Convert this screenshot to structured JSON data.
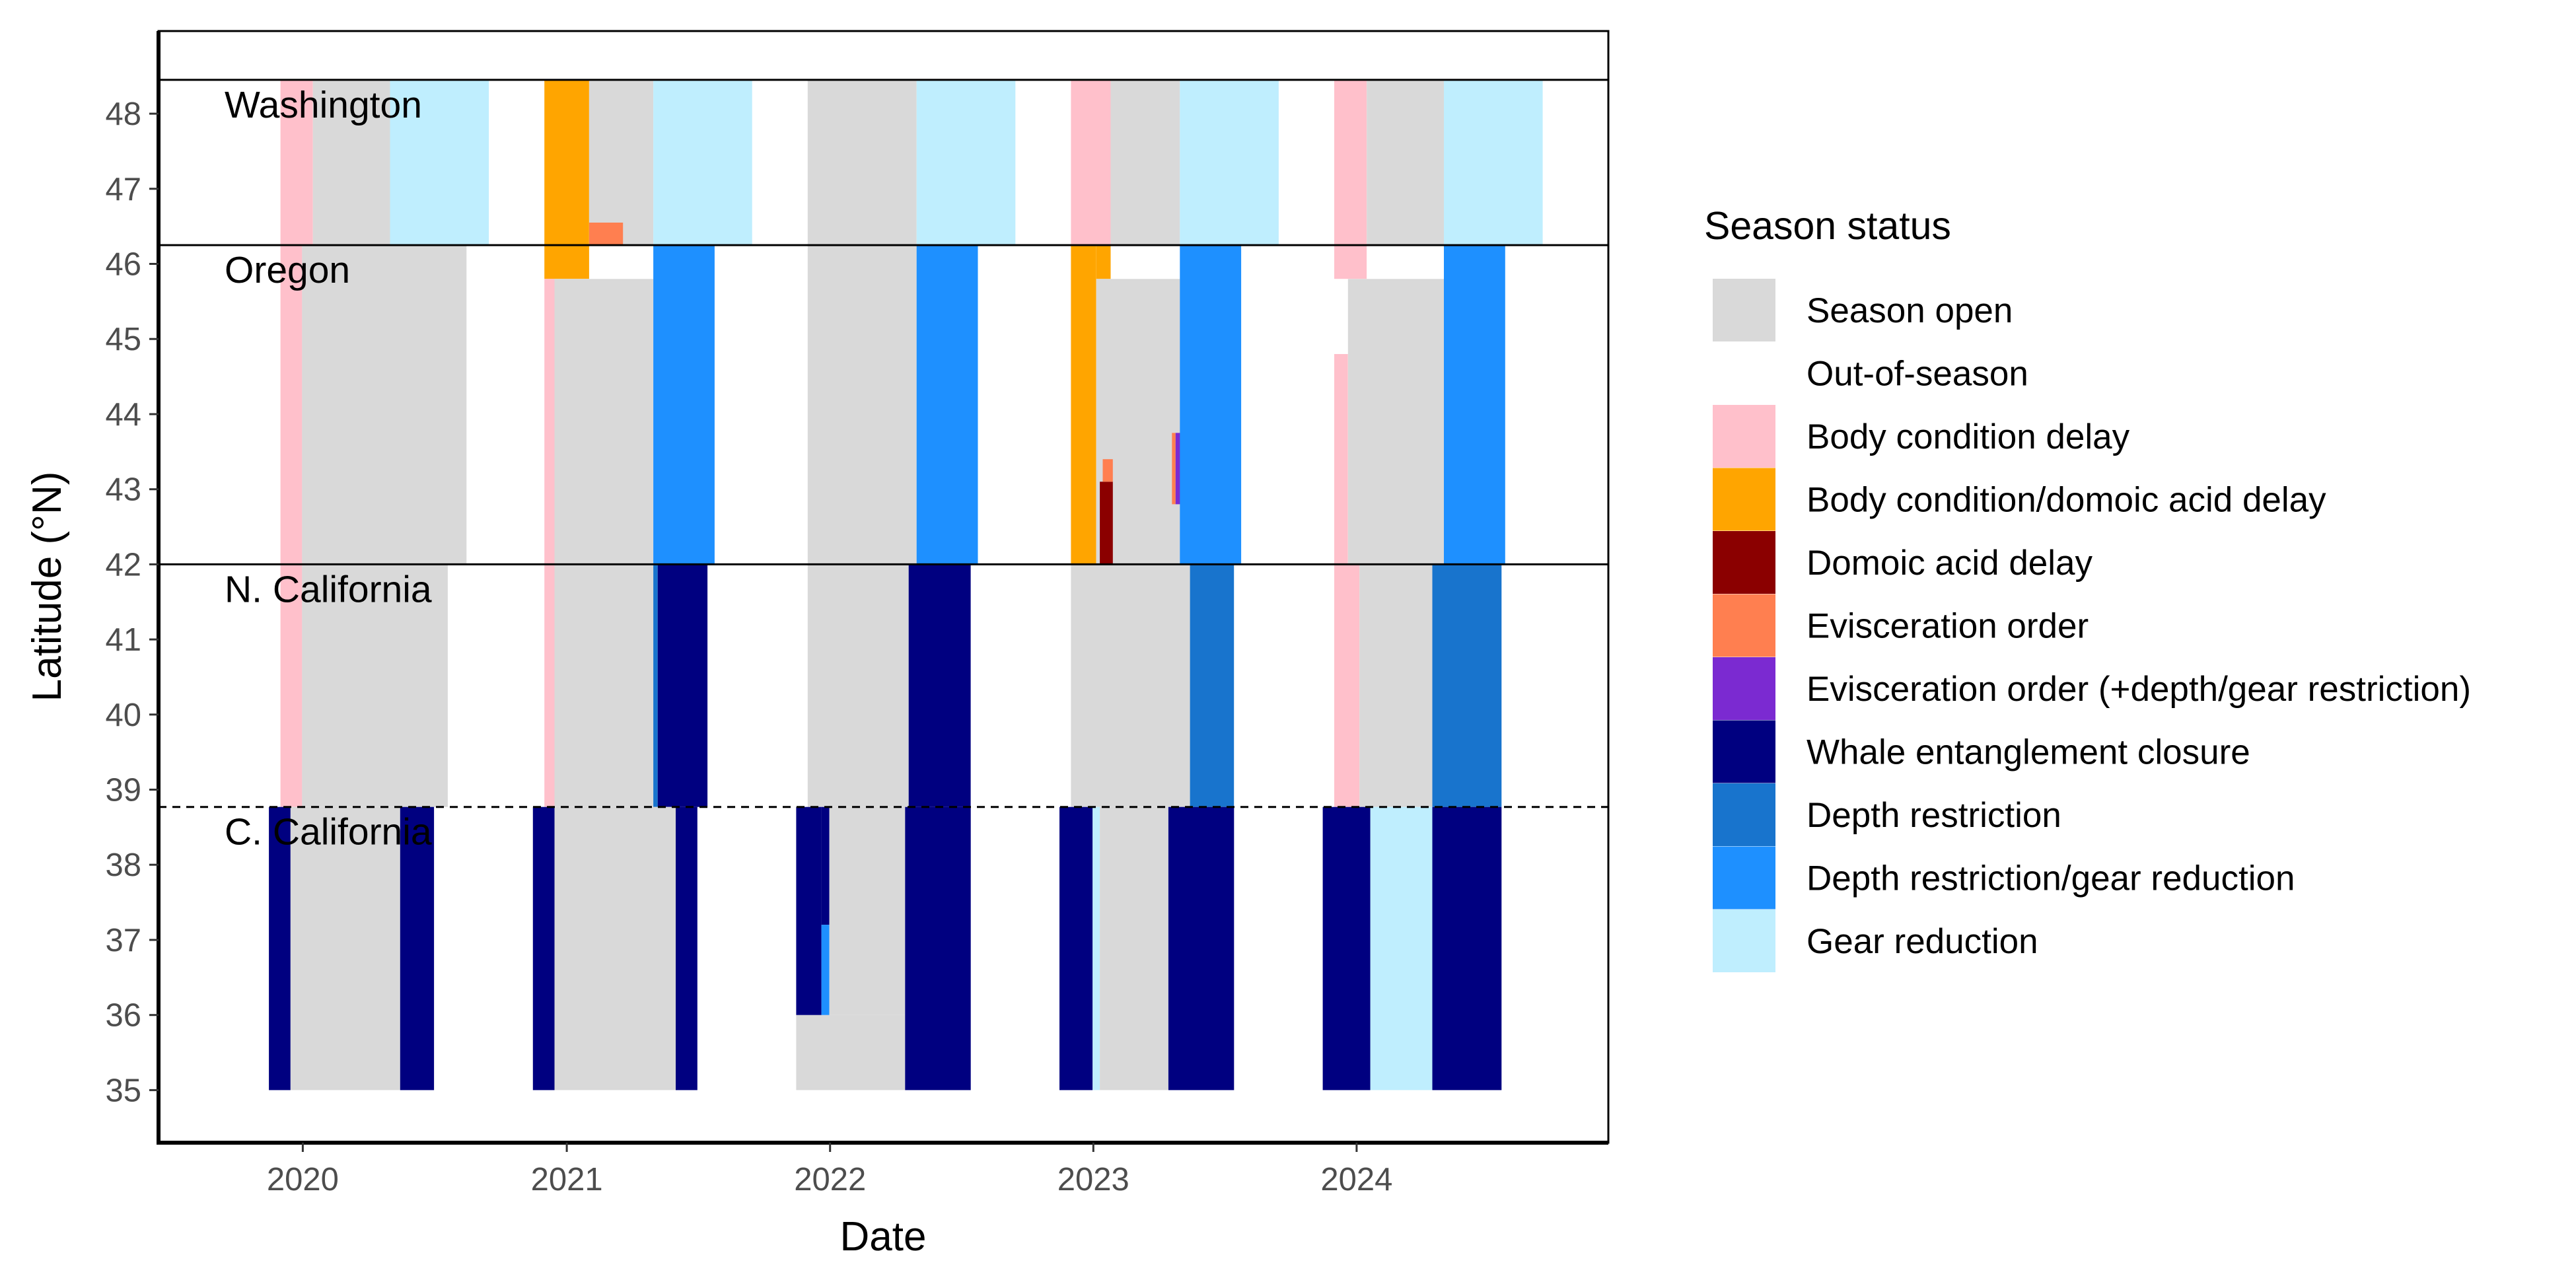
{
  "chart_data": {
    "type": "heatmap",
    "title": "",
    "xlabel": "Date",
    "ylabel": "Latitude (°N)",
    "xlim": [
      "2019-06-15",
      "2024-12-15"
    ],
    "ylim": [
      34.3,
      49.1
    ],
    "x_ticks": [
      {
        "date": "2020-01-01",
        "label": "2020"
      },
      {
        "date": "2021-01-01",
        "label": "2021"
      },
      {
        "date": "2022-01-01",
        "label": "2022"
      },
      {
        "date": "2023-01-01",
        "label": "2023"
      },
      {
        "date": "2024-01-01",
        "label": "2024"
      }
    ],
    "y_ticks": [
      35,
      36,
      37,
      38,
      39,
      40,
      41,
      42,
      43,
      44,
      45,
      46,
      47,
      48
    ],
    "grid": false,
    "legend_position": "right",
    "legend": {
      "title": "Season status",
      "items": [
        {
          "label": "Season open",
          "color": "#d9d9d9"
        },
        {
          "label": "Out-of-season",
          "color": "#ffffff"
        },
        {
          "label": "Body condition delay",
          "color": "#ffc0cb"
        },
        {
          "label": "Body condition/domoic acid delay",
          "color": "#ffa500"
        },
        {
          "label": "Domoic acid delay",
          "color": "#8b0000"
        },
        {
          "label": "Evisceration order",
          "color": "#ff7f50"
        },
        {
          "label": "Evisceration order (+depth/gear restriction)",
          "color": "#7b2ad1"
        },
        {
          "label": "Whale entanglement closure",
          "color": "#000080"
        },
        {
          "label": "Depth restriction",
          "color": "#1874cd"
        },
        {
          "label": "Depth restriction/gear reduction",
          "color": "#1e90ff"
        },
        {
          "label": "Gear reduction",
          "color": "#bfeefe"
        }
      ]
    },
    "regions": [
      {
        "name": "Washington",
        "lat_min": 46.25,
        "lat_max": 48.45
      },
      {
        "name": "Oregon",
        "lat_min": 42.0,
        "lat_max": 46.25
      },
      {
        "name": "N. California",
        "lat_min": 38.77,
        "lat_max": 42.0
      },
      {
        "name": "C. California",
        "lat_min": 35.0,
        "lat_max": 38.77
      }
    ],
    "region_boundaries": [
      {
        "lat": 48.45,
        "style": "solid"
      },
      {
        "lat": 46.25,
        "style": "solid"
      },
      {
        "lat": 42.0,
        "style": "solid"
      },
      {
        "lat": 38.77,
        "style": "dashed"
      }
    ],
    "segments": [
      {
        "status": "Body condition delay",
        "start": "2019-12-01",
        "end": "2020-01-15",
        "lat_min": 46.25,
        "lat_max": 48.45
      },
      {
        "status": "Season open",
        "start": "2020-01-15",
        "end": "2020-05-01",
        "lat_min": 46.25,
        "lat_max": 48.45
      },
      {
        "status": "Gear reduction",
        "start": "2020-05-01",
        "end": "2020-09-15",
        "lat_min": 46.25,
        "lat_max": 48.45
      },
      {
        "status": "Body condition/domoic acid delay",
        "start": "2020-12-01",
        "end": "2021-02-01",
        "lat_min": 45.8,
        "lat_max": 48.45
      },
      {
        "status": "Season open",
        "start": "2021-02-01",
        "end": "2021-05-01",
        "lat_min": 46.25,
        "lat_max": 48.45
      },
      {
        "status": "Evisceration order",
        "start": "2021-02-01",
        "end": "2021-03-20",
        "lat_min": 46.25,
        "lat_max": 46.55
      },
      {
        "status": "Gear reduction",
        "start": "2021-05-01",
        "end": "2021-09-15",
        "lat_min": 46.25,
        "lat_max": 48.45
      },
      {
        "status": "Season open",
        "start": "2021-12-01",
        "end": "2022-05-01",
        "lat_min": 46.25,
        "lat_max": 48.45
      },
      {
        "status": "Gear reduction",
        "start": "2022-05-01",
        "end": "2022-09-15",
        "lat_min": 46.25,
        "lat_max": 48.45
      },
      {
        "status": "Body condition delay",
        "start": "2022-12-01",
        "end": "2023-01-25",
        "lat_min": 46.25,
        "lat_max": 48.45
      },
      {
        "status": "Season open",
        "start": "2023-01-25",
        "end": "2023-05-01",
        "lat_min": 46.25,
        "lat_max": 48.45
      },
      {
        "status": "Gear reduction",
        "start": "2023-05-01",
        "end": "2023-09-15",
        "lat_min": 46.25,
        "lat_max": 48.45
      },
      {
        "status": "Body condition delay",
        "start": "2023-12-01",
        "end": "2024-01-15",
        "lat_min": 45.8,
        "lat_max": 48.45
      },
      {
        "status": "Season open",
        "start": "2024-01-15",
        "end": "2024-05-01",
        "lat_min": 46.25,
        "lat_max": 48.45
      },
      {
        "status": "Gear reduction",
        "start": "2024-05-01",
        "end": "2024-09-15",
        "lat_min": 46.25,
        "lat_max": 48.45
      },
      {
        "status": "Body condition delay",
        "start": "2019-12-01",
        "end": "2019-12-31",
        "lat_min": 42.0,
        "lat_max": 46.25
      },
      {
        "status": "Season open",
        "start": "2019-12-31",
        "end": "2020-08-15",
        "lat_min": 42.0,
        "lat_max": 46.25
      },
      {
        "status": "Body condition delay",
        "start": "2020-12-01",
        "end": "2020-12-15",
        "lat_min": 42.0,
        "lat_max": 45.8
      },
      {
        "status": "Season open",
        "start": "2020-12-15",
        "end": "2021-05-01",
        "lat_min": 42.0,
        "lat_max": 45.8
      },
      {
        "status": "Depth restriction/gear reduction",
        "start": "2021-05-01",
        "end": "2021-07-25",
        "lat_min": 42.0,
        "lat_max": 46.25
      },
      {
        "status": "Season open",
        "start": "2021-12-01",
        "end": "2022-05-01",
        "lat_min": 42.0,
        "lat_max": 46.25
      },
      {
        "status": "Depth restriction/gear reduction",
        "start": "2022-05-01",
        "end": "2022-07-25",
        "lat_min": 42.0,
        "lat_max": 46.25
      },
      {
        "status": "Body condition/domoic acid delay",
        "start": "2022-12-01",
        "end": "2023-01-05",
        "lat_min": 42.0,
        "lat_max": 46.25
      },
      {
        "status": "Body condition/domoic acid delay",
        "start": "2023-01-05",
        "end": "2023-01-25",
        "lat_min": 45.8,
        "lat_max": 46.25
      },
      {
        "status": "Season open",
        "start": "2023-01-05",
        "end": "2023-05-01",
        "lat_min": 42.0,
        "lat_max": 45.8
      },
      {
        "status": "Domoic acid delay",
        "start": "2023-01-10",
        "end": "2023-01-28",
        "lat_min": 42.0,
        "lat_max": 43.1
      },
      {
        "status": "Evisceration order",
        "start": "2023-01-14",
        "end": "2023-01-28",
        "lat_min": 43.1,
        "lat_max": 43.4
      },
      {
        "status": "Evisceration order",
        "start": "2023-04-20",
        "end": "2023-04-25",
        "lat_min": 42.8,
        "lat_max": 43.75
      },
      {
        "status": "Evisceration order (+depth/gear restriction)",
        "start": "2023-04-25",
        "end": "2023-05-05",
        "lat_min": 42.8,
        "lat_max": 43.75
      },
      {
        "status": "Depth restriction/gear reduction",
        "start": "2023-05-01",
        "end": "2023-07-25",
        "lat_min": 42.0,
        "lat_max": 46.25
      },
      {
        "status": "Body condition delay",
        "start": "2023-12-01",
        "end": "2023-12-20",
        "lat_min": 42.0,
        "lat_max": 44.8
      },
      {
        "status": "Season open",
        "start": "2023-12-20",
        "end": "2024-05-01",
        "lat_min": 42.0,
        "lat_max": 45.8
      },
      {
        "status": "Depth restriction/gear reduction",
        "start": "2024-05-01",
        "end": "2024-07-25",
        "lat_min": 42.0,
        "lat_max": 46.25
      },
      {
        "status": "Body condition delay",
        "start": "2019-12-01",
        "end": "2019-12-31",
        "lat_min": 38.77,
        "lat_max": 42.0
      },
      {
        "status": "Season open",
        "start": "2019-12-31",
        "end": "2020-07-20",
        "lat_min": 38.77,
        "lat_max": 42.0
      },
      {
        "status": "Body condition delay",
        "start": "2020-12-01",
        "end": "2020-12-15",
        "lat_min": 38.77,
        "lat_max": 42.0
      },
      {
        "status": "Season open",
        "start": "2020-12-15",
        "end": "2021-05-01",
        "lat_min": 38.77,
        "lat_max": 42.0
      },
      {
        "status": "Depth restriction",
        "start": "2021-05-01",
        "end": "2021-05-07",
        "lat_min": 38.77,
        "lat_max": 42.0
      },
      {
        "status": "Whale entanglement closure",
        "start": "2021-05-07",
        "end": "2021-07-15",
        "lat_min": 38.77,
        "lat_max": 42.0
      },
      {
        "status": "Season open",
        "start": "2021-12-01",
        "end": "2022-04-20",
        "lat_min": 38.77,
        "lat_max": 42.0
      },
      {
        "status": "Whale entanglement closure",
        "start": "2022-04-20",
        "end": "2022-07-15",
        "lat_min": 38.77,
        "lat_max": 42.0
      },
      {
        "status": "Season open",
        "start": "2022-12-01",
        "end": "2023-05-15",
        "lat_min": 38.77,
        "lat_max": 42.0
      },
      {
        "status": "Depth restriction",
        "start": "2023-05-15",
        "end": "2023-07-15",
        "lat_min": 38.77,
        "lat_max": 42.0
      },
      {
        "status": "Body condition delay",
        "start": "2023-12-01",
        "end": "2024-01-05",
        "lat_min": 38.77,
        "lat_max": 42.0
      },
      {
        "status": "Season open",
        "start": "2024-01-05",
        "end": "2024-04-15",
        "lat_min": 38.77,
        "lat_max": 42.0
      },
      {
        "status": "Depth restriction",
        "start": "2024-04-15",
        "end": "2024-07-20",
        "lat_min": 38.77,
        "lat_max": 42.0
      },
      {
        "status": "Whale entanglement closure",
        "start": "2019-11-15",
        "end": "2019-12-15",
        "lat_min": 35.0,
        "lat_max": 38.77
      },
      {
        "status": "Season open",
        "start": "2019-12-15",
        "end": "2020-05-15",
        "lat_min": 35.0,
        "lat_max": 38.77
      },
      {
        "status": "Whale entanglement closure",
        "start": "2020-05-15",
        "end": "2020-07-01",
        "lat_min": 35.0,
        "lat_max": 38.77
      },
      {
        "status": "Whale entanglement closure",
        "start": "2020-11-15",
        "end": "2020-12-15",
        "lat_min": 35.0,
        "lat_max": 38.77
      },
      {
        "status": "Season open",
        "start": "2020-12-15",
        "end": "2021-06-01",
        "lat_min": 35.0,
        "lat_max": 38.77
      },
      {
        "status": "Whale entanglement closure",
        "start": "2021-06-01",
        "end": "2021-07-01",
        "lat_min": 35.0,
        "lat_max": 38.77
      },
      {
        "status": "Season open",
        "start": "2021-11-15",
        "end": "2022-04-15",
        "lat_min": 35.0,
        "lat_max": 36.0
      },
      {
        "status": "Whale entanglement closure",
        "start": "2021-11-15",
        "end": "2021-12-20",
        "lat_min": 36.0,
        "lat_max": 38.77
      },
      {
        "status": "Whale entanglement closure",
        "start": "2021-12-20",
        "end": "2021-12-31",
        "lat_min": 37.2,
        "lat_max": 38.77
      },
      {
        "status": "Depth restriction/gear reduction",
        "start": "2021-12-20",
        "end": "2021-12-31",
        "lat_min": 36.0,
        "lat_max": 37.2
      },
      {
        "status": "Season open",
        "start": "2021-12-31",
        "end": "2022-04-15",
        "lat_min": 36.0,
        "lat_max": 38.77
      },
      {
        "status": "Whale entanglement closure",
        "start": "2022-04-15",
        "end": "2022-07-15",
        "lat_min": 35.0,
        "lat_max": 38.77
      },
      {
        "status": "Whale entanglement closure",
        "start": "2022-11-15",
        "end": "2022-12-31",
        "lat_min": 35.0,
        "lat_max": 38.77
      },
      {
        "status": "Gear reduction",
        "start": "2022-12-31",
        "end": "2023-01-10",
        "lat_min": 35.0,
        "lat_max": 38.77
      },
      {
        "status": "Season open",
        "start": "2023-01-10",
        "end": "2023-04-15",
        "lat_min": 35.0,
        "lat_max": 38.77
      },
      {
        "status": "Whale entanglement closure",
        "start": "2023-04-15",
        "end": "2023-07-15",
        "lat_min": 35.0,
        "lat_max": 38.77
      },
      {
        "status": "Whale entanglement closure",
        "start": "2023-11-15",
        "end": "2024-01-20",
        "lat_min": 35.0,
        "lat_max": 38.77
      },
      {
        "status": "Gear reduction",
        "start": "2024-01-20",
        "end": "2024-04-15",
        "lat_min": 35.0,
        "lat_max": 38.77
      },
      {
        "status": "Whale entanglement closure",
        "start": "2024-04-15",
        "end": "2024-07-20",
        "lat_min": 35.0,
        "lat_max": 38.77
      }
    ]
  }
}
